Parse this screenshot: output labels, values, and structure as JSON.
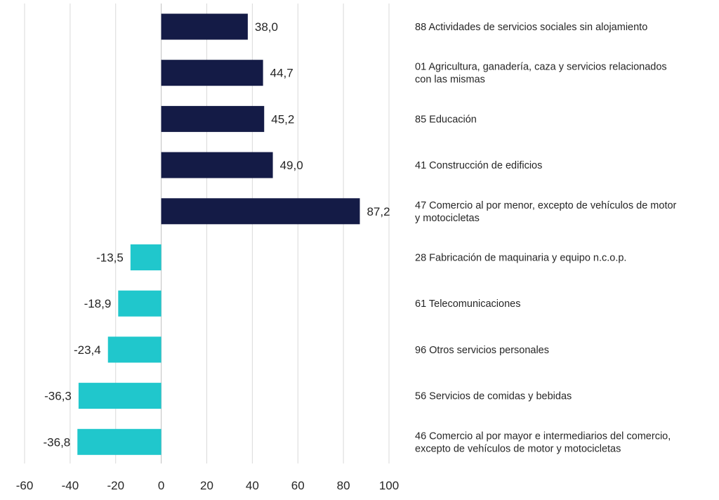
{
  "chart_data": {
    "type": "bar",
    "orientation": "horizontal",
    "title": "",
    "xlabel": "",
    "ylabel": "",
    "xlim": [
      -60,
      100
    ],
    "x_ticks": [
      "-60",
      "-40",
      "-20",
      "0",
      "20",
      "40",
      "60",
      "80",
      "100"
    ],
    "grid": true,
    "colors": {
      "positive": "#141b46",
      "negative": "#20c7cc"
    },
    "categories": [
      [
        "88 Actividades de servicios sociales sin alojamiento"
      ],
      [
        "01 Agricultura, ganadería, caza y servicios relacionados",
        "con las mismas"
      ],
      [
        "85 Educación"
      ],
      [
        "41 Construcción de edificios"
      ],
      [
        "47 Comercio al por menor, excepto de vehículos de motor",
        "y motocicletas"
      ],
      [
        "28 Fabricación de maquinaria y equipo n.c.o.p."
      ],
      [
        "61 Telecomunicaciones"
      ],
      [
        "96 Otros servicios personales"
      ],
      [
        "56 Servicios de comidas y bebidas"
      ],
      [
        "46 Comercio al por mayor e intermediarios del comercio,",
        "excepto de vehículos de motor y motocicletas"
      ]
    ],
    "values": [
      38.0,
      44.7,
      45.2,
      49.0,
      87.2,
      -13.5,
      -18.9,
      -23.4,
      -36.3,
      -36.8
    ],
    "value_labels": [
      "38,0",
      "44,7",
      "45,2",
      "49,0",
      "87,2",
      "-13,5",
      "-18,9",
      "-23,4",
      "-36,3",
      "-36,8"
    ]
  }
}
